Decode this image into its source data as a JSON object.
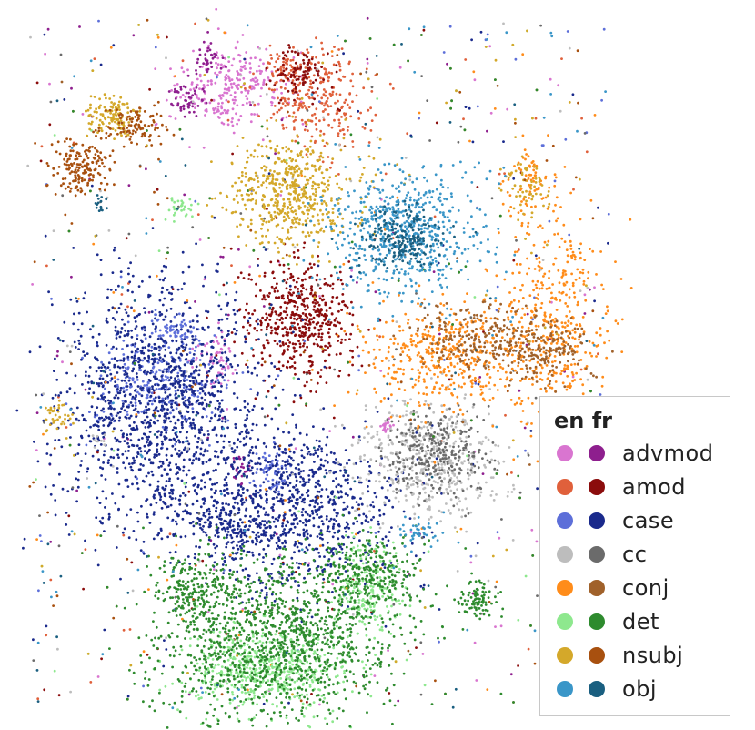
{
  "chart_data": {
    "type": "scatter",
    "title": "",
    "xlabel": "",
    "ylabel": "",
    "grid": false,
    "legend_position": "bottom-right",
    "legend_header": [
      "en",
      "fr"
    ],
    "series": [
      {
        "label": "advmod",
        "en_color": "#d975d0",
        "fr_color": "#8e1f8e",
        "en_clusters": [
          [
            255,
            95,
            30,
            22,
            260
          ],
          [
            235,
            395,
            12,
            14,
            60
          ],
          [
            425,
            470,
            4,
            5,
            20
          ]
        ],
        "fr_clusters": [
          [
            228,
            65,
            8,
            8,
            40
          ],
          [
            205,
            110,
            10,
            8,
            50
          ],
          [
            265,
            515,
            6,
            8,
            25
          ]
        ]
      },
      {
        "label": "amod",
        "en_color": "#e0603b",
        "fr_color": "#8b0c0c",
        "en_clusters": [
          [
            350,
            110,
            30,
            28,
            250
          ],
          [
            310,
            75,
            12,
            10,
            60
          ]
        ],
        "fr_clusters": [
          [
            330,
            350,
            28,
            32,
            520
          ],
          [
            330,
            80,
            14,
            12,
            100
          ]
        ]
      },
      {
        "label": "case",
        "en_color": "#5d6fd9",
        "fr_color": "#1a2a8c",
        "en_clusters": [
          [
            175,
            420,
            40,
            28,
            260
          ],
          [
            190,
            362,
            12,
            8,
            70
          ],
          [
            300,
            520,
            10,
            12,
            60
          ]
        ],
        "fr_clusters": [
          [
            175,
            440,
            55,
            65,
            1300
          ],
          [
            315,
            560,
            60,
            42,
            1000
          ],
          [
            250,
            575,
            14,
            14,
            90
          ],
          [
            180,
            545,
            8,
            8,
            30
          ]
        ]
      },
      {
        "label": "cc",
        "en_color": "#bdbdbd",
        "fr_color": "#6b6b6b",
        "en_clusters": [
          [
            470,
            505,
            38,
            32,
            460
          ],
          [
            108,
            486,
            4,
            4,
            10
          ]
        ],
        "fr_clusters": [
          [
            480,
            500,
            28,
            24,
            280
          ]
        ]
      },
      {
        "label": "conj",
        "en_color": "#ff8c1a",
        "fr_color": "#a0612a",
        "en_clusters": [
          [
            490,
            390,
            42,
            28,
            420
          ],
          [
            610,
            350,
            30,
            60,
            430
          ],
          [
            580,
            200,
            14,
            20,
            70
          ]
        ],
        "fr_clusters": [
          [
            520,
            370,
            30,
            18,
            200
          ],
          [
            595,
            385,
            25,
            18,
            180
          ]
        ]
      },
      {
        "label": "det",
        "en_color": "#8ee88e",
        "fr_color": "#2e8b2e",
        "en_clusters": [
          [
            295,
            735,
            45,
            22,
            520
          ],
          [
            405,
            650,
            20,
            25,
            200
          ],
          [
            195,
            228,
            7,
            7,
            30
          ]
        ],
        "fr_clusters": [
          [
            305,
            705,
            65,
            45,
            1250
          ],
          [
            215,
            648,
            22,
            18,
            200
          ],
          [
            405,
            630,
            28,
            18,
            260
          ],
          [
            525,
            660,
            12,
            10,
            90
          ]
        ]
      },
      {
        "label": "nsubj",
        "en_color": "#d4a82a",
        "fr_color": "#a8500f",
        "en_clusters": [
          [
            318,
            212,
            32,
            30,
            540
          ],
          [
            125,
            128,
            14,
            12,
            120
          ],
          [
            580,
            205,
            12,
            16,
            60
          ],
          [
            62,
            455,
            8,
            8,
            40
          ]
        ],
        "fr_clusters": [
          [
            88,
            185,
            16,
            16,
            180
          ],
          [
            148,
            140,
            18,
            12,
            100
          ]
        ]
      },
      {
        "label": "obj",
        "en_color": "#3a96c8",
        "fr_color": "#1a5f80",
        "en_clusters": [
          [
            445,
            255,
            40,
            34,
            620
          ],
          [
            460,
            585,
            12,
            8,
            40
          ]
        ],
        "fr_clusters": [
          [
            445,
            260,
            22,
            16,
            200
          ],
          [
            110,
            225,
            3,
            6,
            15
          ]
        ]
      }
    ]
  }
}
